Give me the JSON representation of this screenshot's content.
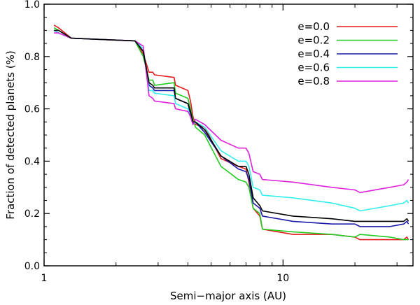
{
  "chart_data": {
    "type": "line",
    "title": "",
    "xlabel": "Semi−major axis (AU)",
    "ylabel": "Fraction of detected planets (%)",
    "xscale": "log",
    "xlim": [
      1.0,
      35.0
    ],
    "ylim": [
      0.0,
      1.0
    ],
    "grid": false,
    "legend_position": "top-right",
    "x_ticks": [
      {
        "value": 1,
        "label": "1"
      },
      {
        "value": 10,
        "label": "10"
      }
    ],
    "y_ticks": [
      {
        "value": 0.0,
        "label": "0.0"
      },
      {
        "value": 0.2,
        "label": "0.2"
      },
      {
        "value": 0.4,
        "label": "0.4"
      },
      {
        "value": 0.6,
        "label": "0.6"
      },
      {
        "value": 0.8,
        "label": "0.8"
      },
      {
        "value": 1.0,
        "label": "1.0"
      }
    ],
    "series": [
      {
        "name": "e=0.0",
        "in_legend": true,
        "color": "#e41a1c",
        "x": [
          1.1,
          1.15,
          1.3,
          2.4,
          2.6,
          2.75,
          2.85,
          2.9,
          3.5,
          3.55,
          4.0,
          4.1,
          4.2,
          4.3,
          4.7,
          5.5,
          6.5,
          7.0,
          7.2,
          7.5,
          8.0,
          8.2,
          11,
          16,
          20,
          21,
          28,
          32,
          33,
          33.5
        ],
        "y": [
          0.92,
          0.91,
          0.87,
          0.86,
          0.81,
          0.74,
          0.74,
          0.73,
          0.72,
          0.69,
          0.67,
          0.63,
          0.57,
          0.54,
          0.53,
          0.41,
          0.38,
          0.37,
          0.32,
          0.22,
          0.19,
          0.14,
          0.12,
          0.12,
          0.11,
          0.1,
          0.1,
          0.1,
          0.11,
          0.1
        ]
      },
      {
        "name": "e=0.2",
        "in_legend": true,
        "color": "#22cc22",
        "x": [
          1.1,
          1.15,
          1.3,
          2.4,
          2.6,
          2.75,
          2.85,
          2.9,
          3.5,
          3.55,
          4.0,
          4.1,
          4.2,
          4.3,
          4.7,
          5.5,
          6.5,
          7.0,
          7.2,
          7.5,
          8.0,
          8.2,
          11,
          16,
          20,
          21,
          28,
          32,
          33,
          33.5
        ],
        "y": [
          0.91,
          0.9,
          0.87,
          0.86,
          0.8,
          0.71,
          0.71,
          0.69,
          0.7,
          0.66,
          0.64,
          0.6,
          0.56,
          0.53,
          0.5,
          0.38,
          0.33,
          0.32,
          0.3,
          0.22,
          0.2,
          0.14,
          0.13,
          0.12,
          0.11,
          0.12,
          0.11,
          0.1,
          0.1,
          0.1
        ]
      },
      {
        "name": "e=0.4",
        "in_legend": true,
        "color": "#1a1aaa",
        "x": [
          1.1,
          1.15,
          1.3,
          2.4,
          2.6,
          2.75,
          2.85,
          2.9,
          3.5,
          3.55,
          4.0,
          4.1,
          4.2,
          4.3,
          4.7,
          5.5,
          6.5,
          7.0,
          7.2,
          7.5,
          8.0,
          8.2,
          11,
          16,
          20,
          21,
          28,
          32,
          33,
          33.5
        ],
        "y": [
          0.9,
          0.89,
          0.87,
          0.86,
          0.82,
          0.69,
          0.68,
          0.67,
          0.67,
          0.64,
          0.62,
          0.58,
          0.54,
          0.55,
          0.51,
          0.42,
          0.37,
          0.36,
          0.33,
          0.24,
          0.22,
          0.19,
          0.17,
          0.16,
          0.16,
          0.15,
          0.15,
          0.16,
          0.17,
          0.16
        ]
      },
      {
        "name": "e=0.6",
        "in_legend": true,
        "color": "#33eeee",
        "x": [
          1.1,
          1.15,
          1.3,
          2.4,
          2.6,
          2.75,
          2.85,
          2.9,
          3.5,
          3.55,
          4.0,
          4.1,
          4.2,
          4.3,
          4.7,
          5.5,
          6.5,
          7.0,
          7.2,
          7.5,
          8.0,
          8.2,
          11,
          16,
          20,
          21,
          28,
          32,
          33,
          33.5
        ],
        "y": [
          0.9,
          0.89,
          0.87,
          0.86,
          0.83,
          0.67,
          0.67,
          0.66,
          0.65,
          0.62,
          0.6,
          0.57,
          0.54,
          0.55,
          0.53,
          0.44,
          0.4,
          0.4,
          0.38,
          0.3,
          0.29,
          0.27,
          0.26,
          0.24,
          0.22,
          0.21,
          0.23,
          0.24,
          0.25,
          0.24
        ]
      },
      {
        "name": "e=0.8",
        "in_legend": true,
        "color": "#dd22dd",
        "x": [
          1.1,
          1.15,
          1.3,
          2.4,
          2.6,
          2.75,
          2.85,
          2.9,
          3.5,
          3.55,
          4.0,
          4.1,
          4.2,
          4.3,
          4.7,
          5.5,
          6.5,
          7.0,
          7.2,
          7.5,
          8.0,
          8.2,
          11,
          16,
          20,
          21,
          28,
          32,
          33,
          33.5
        ],
        "y": [
          0.89,
          0.89,
          0.87,
          0.86,
          0.84,
          0.65,
          0.64,
          0.63,
          0.62,
          0.6,
          0.59,
          0.57,
          0.54,
          0.56,
          0.54,
          0.48,
          0.45,
          0.45,
          0.43,
          0.36,
          0.35,
          0.33,
          0.32,
          0.3,
          0.29,
          0.28,
          0.3,
          0.31,
          0.32,
          0.33
        ]
      },
      {
        "name": "mean",
        "in_legend": false,
        "color": "#000000",
        "x": [
          1.1,
          1.15,
          1.3,
          2.4,
          2.6,
          2.75,
          2.85,
          2.9,
          3.5,
          3.55,
          4.0,
          4.1,
          4.2,
          4.3,
          4.7,
          5.5,
          6.5,
          7.0,
          7.2,
          7.5,
          8.0,
          8.2,
          11,
          16,
          20,
          21,
          28,
          32,
          33,
          33.5
        ],
        "y": [
          0.9,
          0.9,
          0.87,
          0.86,
          0.82,
          0.7,
          0.69,
          0.68,
          0.68,
          0.64,
          0.62,
          0.59,
          0.55,
          0.55,
          0.52,
          0.42,
          0.38,
          0.38,
          0.35,
          0.26,
          0.23,
          0.21,
          0.19,
          0.18,
          0.17,
          0.17,
          0.17,
          0.17,
          0.18,
          0.17
        ]
      }
    ]
  }
}
